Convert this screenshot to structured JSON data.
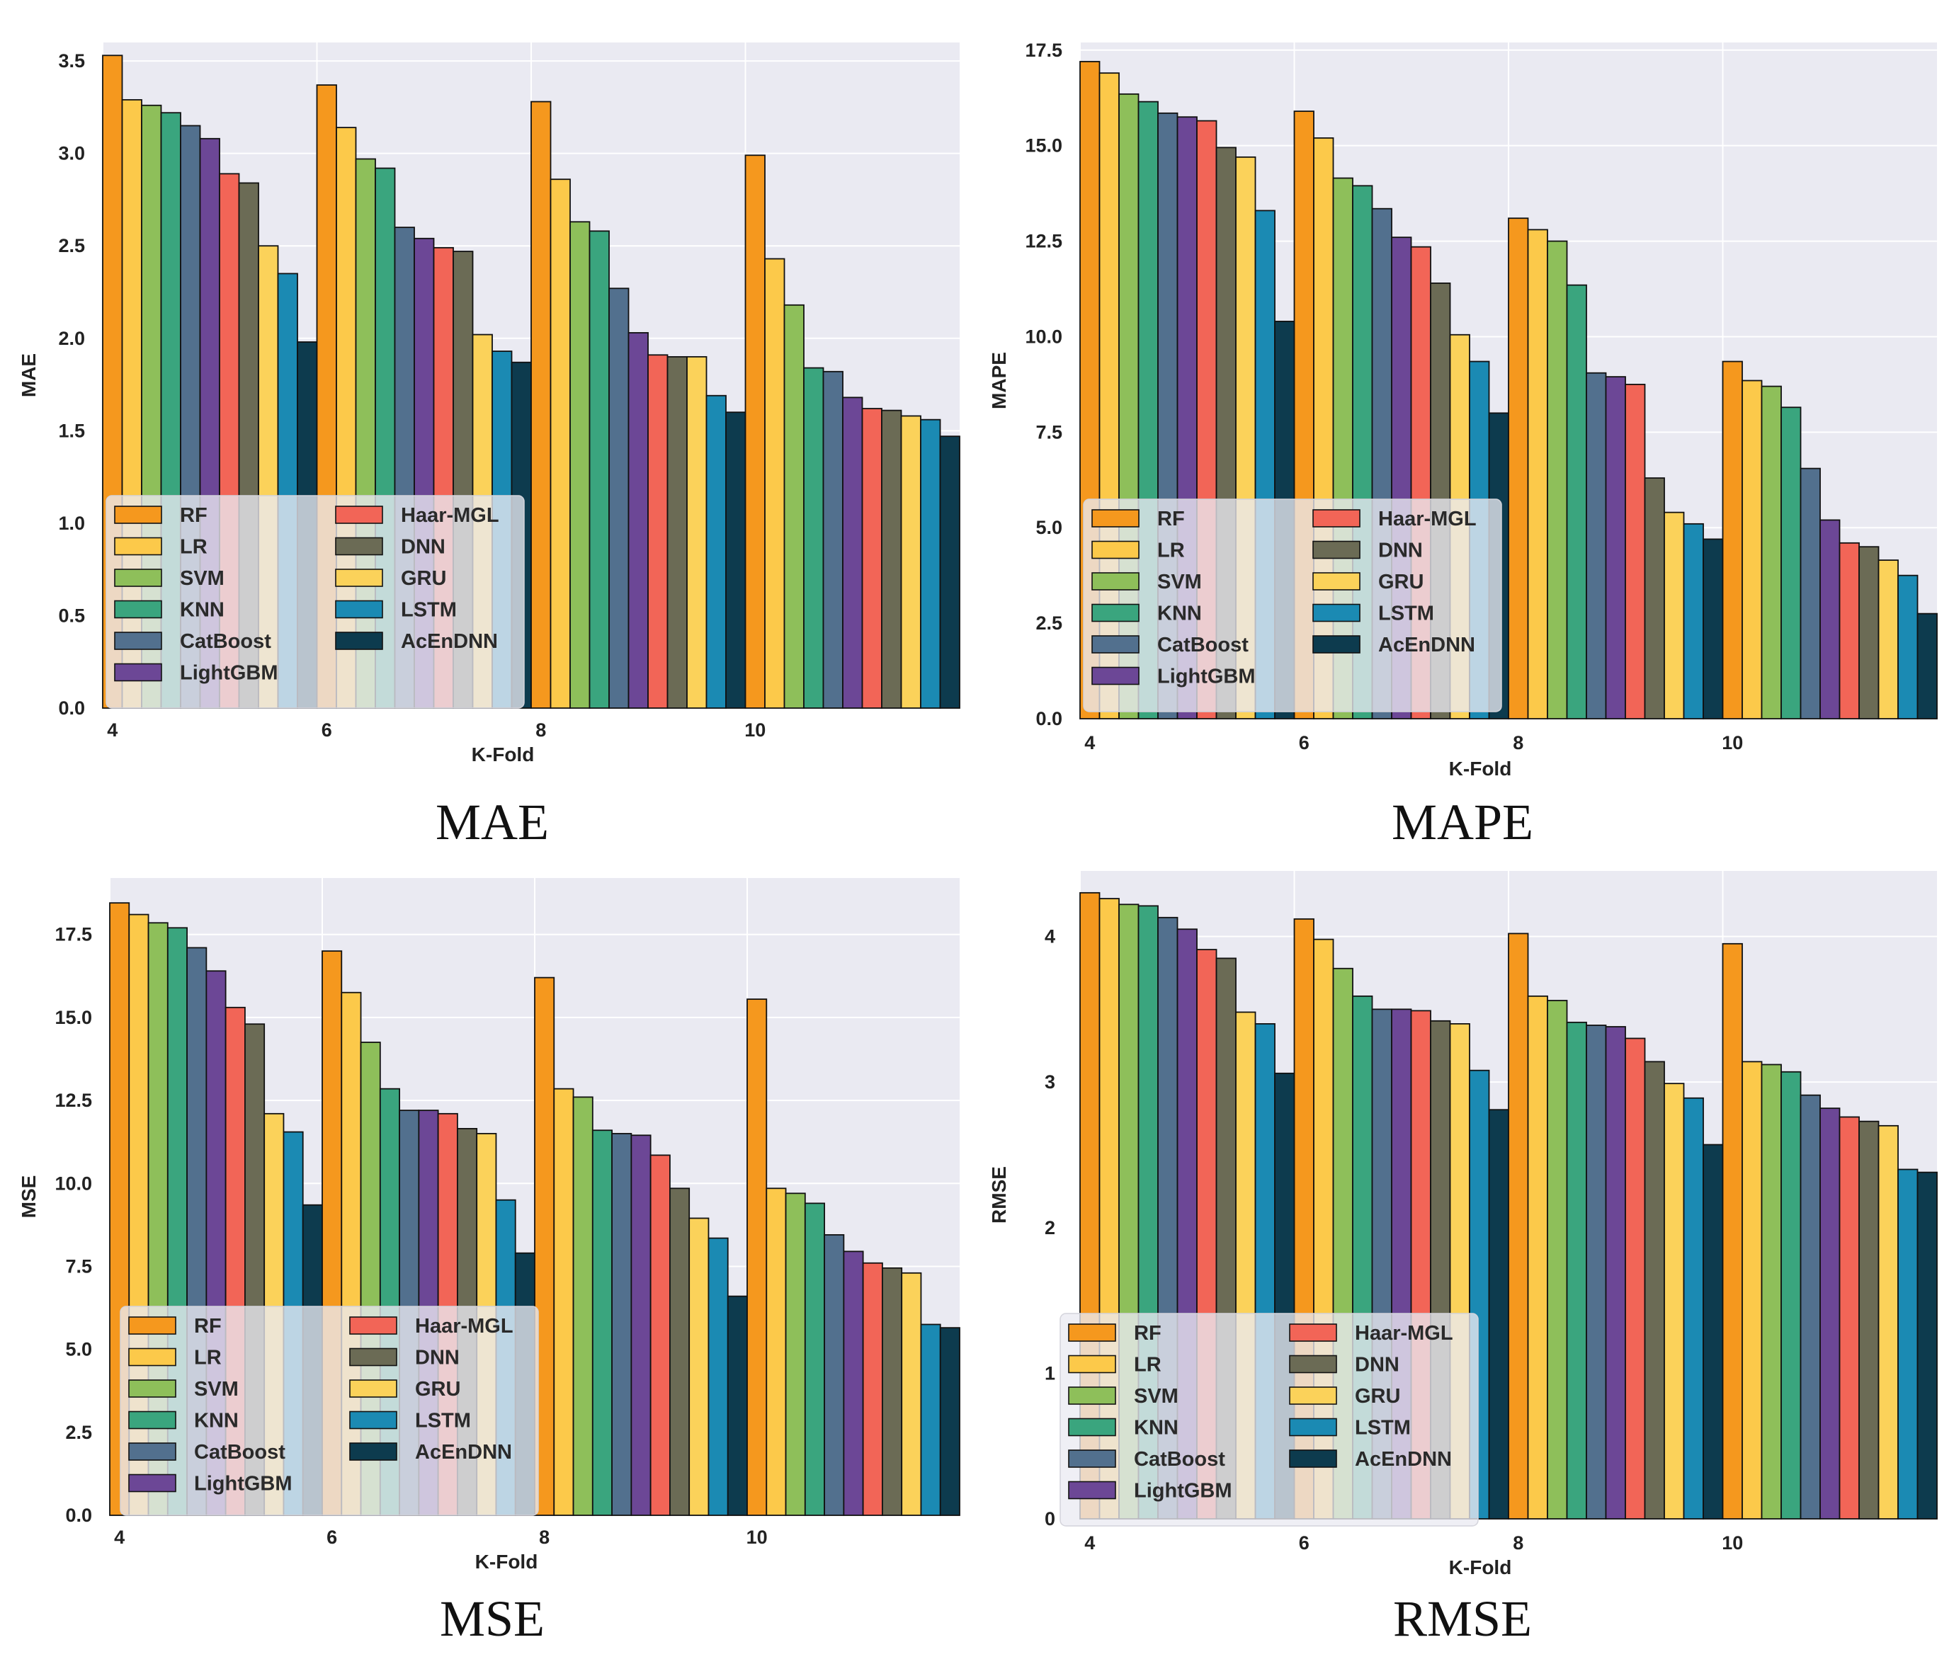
{
  "colors": {
    "RF": "#f5981e",
    "LR": "#fcc94a",
    "SVM": "#8ebf5a",
    "KNN": "#3aa57e",
    "CatBoost": "#52708e",
    "LightGBM": "#6c4796",
    "Haar-MGL": "#f26557",
    "DNN": "#6b6b55",
    "GRU": "#fbd25a",
    "LSTM": "#1b8ab3",
    "AcEnDNN": "#0d3b4e",
    "background": "#eaeaf2",
    "grid": "#ffffff",
    "edge": "#111111"
  },
  "chart_data": [
    {
      "type": "bar",
      "caption": "MAE",
      "xlabel": "K-Fold",
      "ylabel": "MAE",
      "ylim": [
        0,
        3.6
      ],
      "yticks": [
        "0.0",
        "0.5",
        "1.0",
        "1.5",
        "2.0",
        "2.5",
        "3.0",
        "3.5"
      ],
      "categories": [
        "4",
        "6",
        "8",
        "10"
      ],
      "legend": "lower-left",
      "series": [
        {
          "name": "RF",
          "values": [
            3.53,
            3.37,
            3.28,
            2.99
          ]
        },
        {
          "name": "LR",
          "values": [
            3.29,
            3.14,
            2.86,
            2.43
          ]
        },
        {
          "name": "SVM",
          "values": [
            3.26,
            2.97,
            2.63,
            2.18
          ]
        },
        {
          "name": "KNN",
          "values": [
            3.22,
            2.92,
            2.58,
            1.84
          ]
        },
        {
          "name": "CatBoost",
          "values": [
            3.15,
            2.6,
            2.27,
            1.82
          ]
        },
        {
          "name": "LightGBM",
          "values": [
            3.08,
            2.54,
            2.03,
            1.68
          ]
        },
        {
          "name": "Haar-MGL",
          "values": [
            2.89,
            2.49,
            1.91,
            1.62
          ]
        },
        {
          "name": "DNN",
          "values": [
            2.84,
            2.47,
            1.9,
            1.61
          ]
        },
        {
          "name": "GRU",
          "values": [
            2.5,
            2.02,
            1.9,
            1.58
          ]
        },
        {
          "name": "LSTM",
          "values": [
            2.35,
            1.93,
            1.69,
            1.56
          ]
        },
        {
          "name": "AcEnDNN",
          "values": [
            1.98,
            1.87,
            1.6,
            1.47
          ]
        }
      ]
    },
    {
      "type": "bar",
      "caption": "MAPE",
      "xlabel": "K-Fold",
      "ylabel": "MAPE",
      "ylim": [
        0,
        17.7
      ],
      "yticks": [
        "0.0",
        "2.5",
        "5.0",
        "7.5",
        "10.0",
        "12.5",
        "15.0",
        "17.5"
      ],
      "categories": [
        "4",
        "6",
        "8",
        "10"
      ],
      "legend": "lower-left",
      "series": [
        {
          "name": "RF",
          "values": [
            17.2,
            15.9,
            13.1,
            9.35
          ]
        },
        {
          "name": "LR",
          "values": [
            16.9,
            15.2,
            12.8,
            8.85
          ]
        },
        {
          "name": "SVM",
          "values": [
            16.35,
            14.15,
            12.5,
            8.7
          ]
        },
        {
          "name": "KNN",
          "values": [
            16.15,
            13.95,
            11.35,
            8.15
          ]
        },
        {
          "name": "CatBoost",
          "values": [
            15.85,
            13.35,
            9.05,
            6.55
          ]
        },
        {
          "name": "LightGBM",
          "values": [
            15.75,
            12.6,
            8.95,
            5.2
          ]
        },
        {
          "name": "Haar-MGL",
          "values": [
            15.65,
            12.35,
            8.75,
            4.6
          ]
        },
        {
          "name": "DNN",
          "values": [
            14.95,
            11.4,
            6.3,
            4.5
          ]
        },
        {
          "name": "GRU",
          "values": [
            14.7,
            10.05,
            5.4,
            4.15
          ]
        },
        {
          "name": "LSTM",
          "values": [
            13.3,
            9.35,
            5.1,
            3.75
          ]
        },
        {
          "name": "AcEnDNN",
          "values": [
            10.4,
            8.0,
            4.7,
            2.75
          ]
        }
      ]
    },
    {
      "type": "bar",
      "caption": "MSE",
      "xlabel": "K-Fold",
      "ylabel": "MSE",
      "ylim": [
        0,
        19.2
      ],
      "yticks": [
        "0.0",
        "2.5",
        "5.0",
        "7.5",
        "10.0",
        "12.5",
        "15.0",
        "17.5"
      ],
      "categories": [
        "4",
        "6",
        "8",
        "10"
      ],
      "legend": "lower-left",
      "series": [
        {
          "name": "RF",
          "values": [
            18.45,
            17.0,
            16.2,
            15.55
          ]
        },
        {
          "name": "LR",
          "values": [
            18.1,
            15.75,
            12.85,
            9.85
          ]
        },
        {
          "name": "SVM",
          "values": [
            17.85,
            14.25,
            12.6,
            9.7
          ]
        },
        {
          "name": "KNN",
          "values": [
            17.7,
            12.85,
            11.6,
            9.4
          ]
        },
        {
          "name": "CatBoost",
          "values": [
            17.1,
            12.2,
            11.5,
            8.45
          ]
        },
        {
          "name": "LightGBM",
          "values": [
            16.4,
            12.2,
            11.45,
            7.95
          ]
        },
        {
          "name": "Haar-MGL",
          "values": [
            15.3,
            12.1,
            10.85,
            7.6
          ]
        },
        {
          "name": "DNN",
          "values": [
            14.8,
            11.65,
            9.85,
            7.45
          ]
        },
        {
          "name": "GRU",
          "values": [
            12.1,
            11.5,
            8.95,
            7.3
          ]
        },
        {
          "name": "LSTM",
          "values": [
            11.55,
            9.5,
            8.35,
            5.75
          ]
        },
        {
          "name": "AcEnDNN",
          "values": [
            9.35,
            7.9,
            6.6,
            5.65
          ]
        }
      ]
    },
    {
      "type": "bar",
      "caption": "RMSE",
      "xlabel": "K-Fold",
      "ylabel": "RMSE",
      "ylim": [
        0,
        4.45
      ],
      "yticks": [
        "0",
        "1",
        "2",
        "3",
        "4"
      ],
      "categories": [
        "4",
        "6",
        "8",
        "10"
      ],
      "legend": "lower-left",
      "series": [
        {
          "name": "RF",
          "values": [
            4.3,
            4.12,
            4.02,
            3.95
          ]
        },
        {
          "name": "LR",
          "values": [
            4.26,
            3.98,
            3.59,
            3.14
          ]
        },
        {
          "name": "SVM",
          "values": [
            4.22,
            3.78,
            3.56,
            3.12
          ]
        },
        {
          "name": "KNN",
          "values": [
            4.21,
            3.59,
            3.41,
            3.07
          ]
        },
        {
          "name": "CatBoost",
          "values": [
            4.13,
            3.5,
            3.39,
            2.91
          ]
        },
        {
          "name": "LightGBM",
          "values": [
            4.05,
            3.5,
            3.38,
            2.82
          ]
        },
        {
          "name": "Haar-MGL",
          "values": [
            3.91,
            3.49,
            3.3,
            2.76
          ]
        },
        {
          "name": "DNN",
          "values": [
            3.85,
            3.42,
            3.14,
            2.73
          ]
        },
        {
          "name": "GRU",
          "values": [
            3.48,
            3.4,
            2.99,
            2.7
          ]
        },
        {
          "name": "LSTM",
          "values": [
            3.4,
            3.08,
            2.89,
            2.4
          ]
        },
        {
          "name": "AcEnDNN",
          "values": [
            3.06,
            2.81,
            2.57,
            2.38
          ]
        }
      ]
    }
  ]
}
